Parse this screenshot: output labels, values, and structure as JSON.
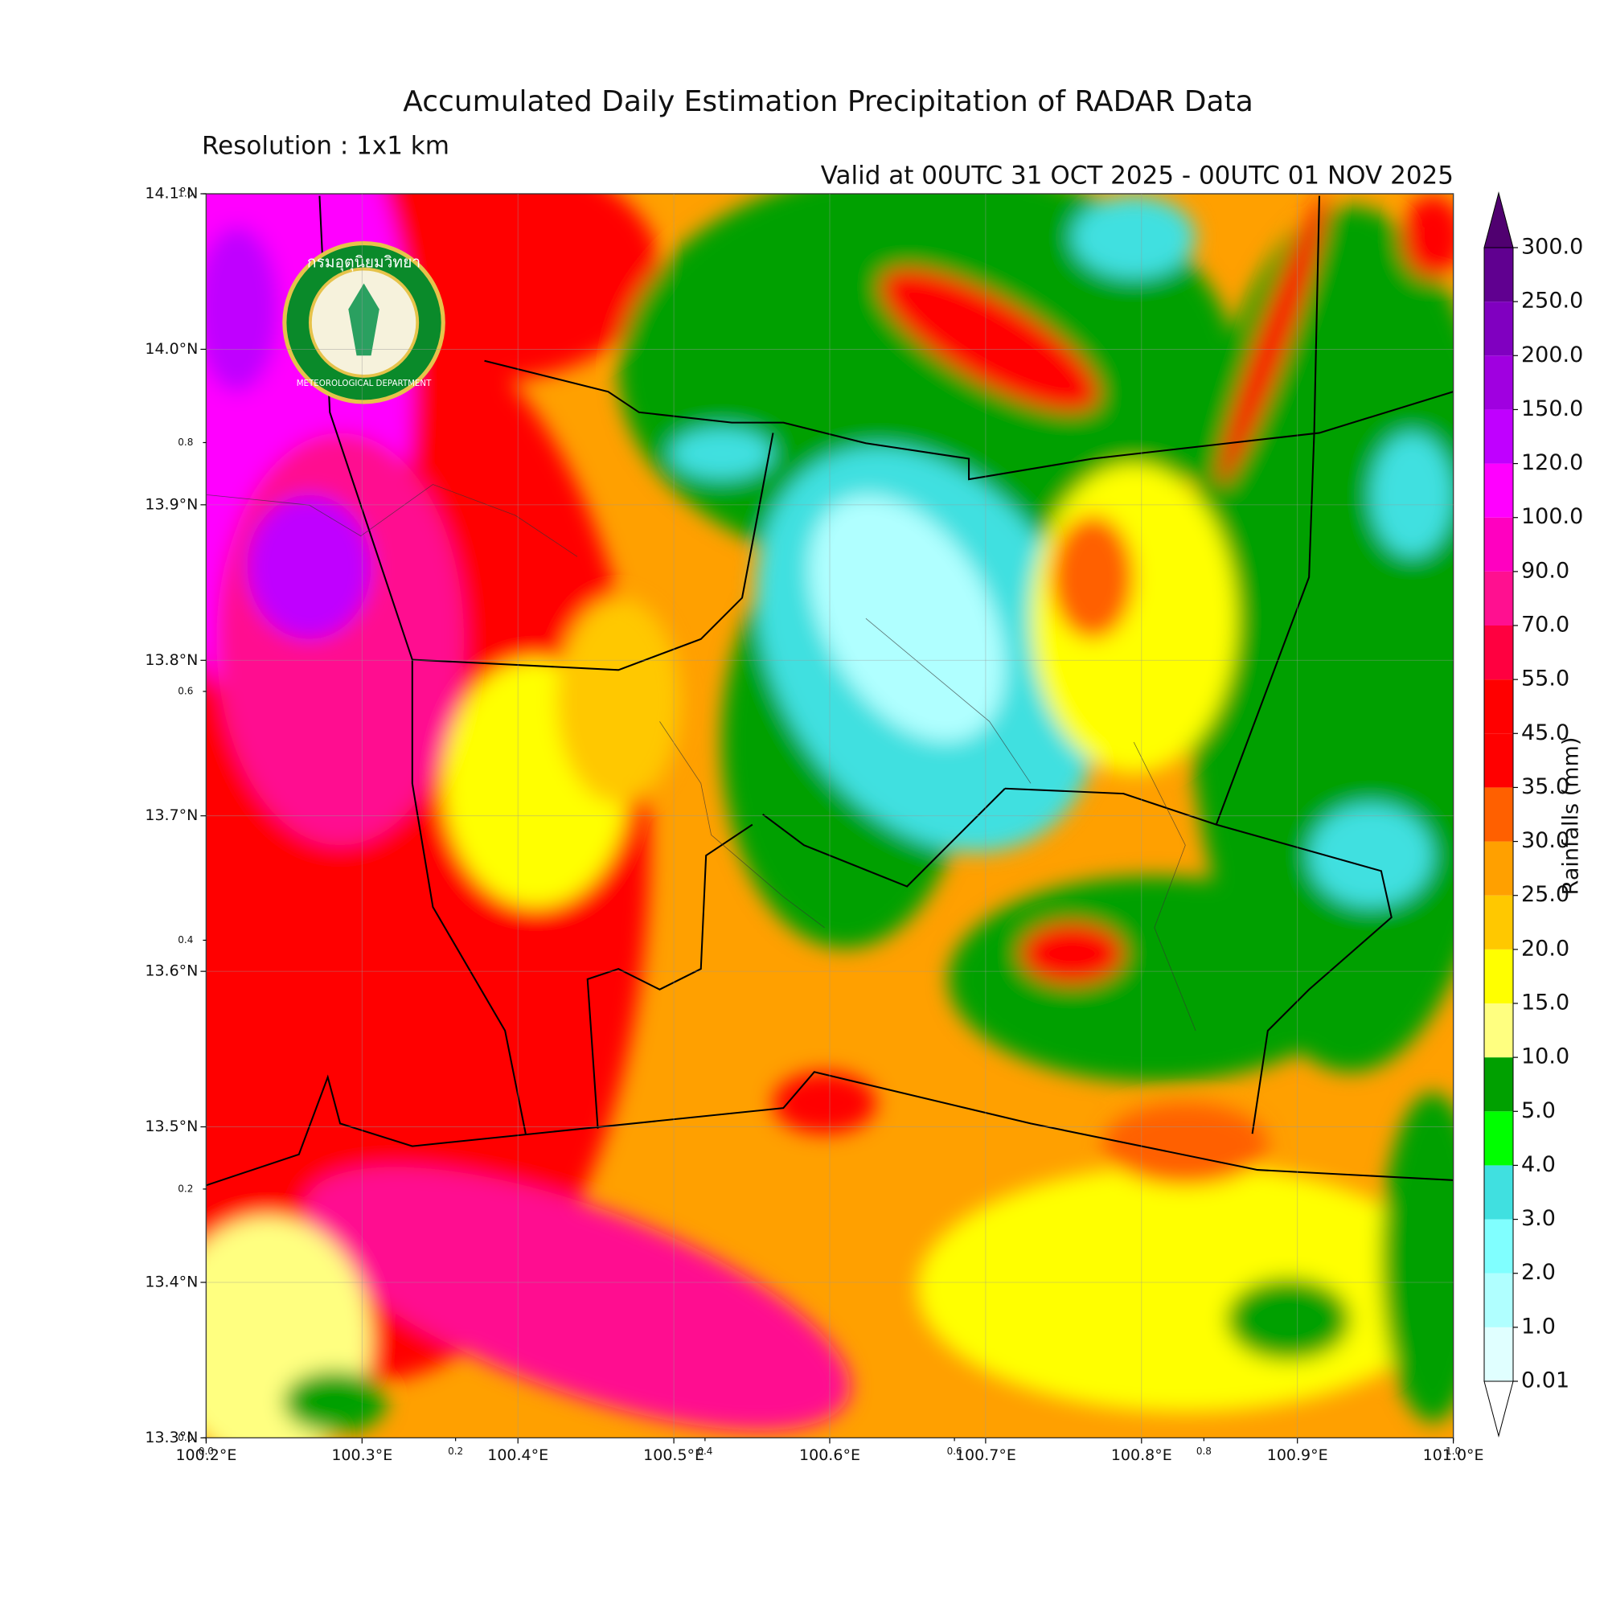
{
  "chart_data": {
    "type": "contour-map",
    "title": "Accumulated Daily Estimation Precipitation of RADAR Data",
    "subtitle": "Resolution : 1x1 km",
    "valid_time": "Valid at 00UTC 31 OCT 2025 - 00UTC 01 NOV 2025",
    "logo_text": "กรมอุตุนิยมวิทยา",
    "logo_subtext": "METEOROLOGICAL DEPARTMENT",
    "xlim": [
      100.2,
      101.0
    ],
    "ylim": [
      13.3,
      14.1
    ],
    "xticks": [
      {
        "value": 100.2,
        "label": "100.2°E"
      },
      {
        "value": 100.3,
        "label": "100.3°E"
      },
      {
        "value": 100.4,
        "label": "100.4°E"
      },
      {
        "value": 100.5,
        "label": "100.5°E"
      },
      {
        "value": 100.6,
        "label": "100.6°E"
      },
      {
        "value": 100.7,
        "label": "100.7°E"
      },
      {
        "value": 100.8,
        "label": "100.8°E"
      },
      {
        "value": 100.9,
        "label": "100.9°E"
      },
      {
        "value": 101.0,
        "label": "101.0°E"
      }
    ],
    "yticks": [
      {
        "value": 13.3,
        "label": "13.3°N"
      },
      {
        "value": 13.4,
        "label": "13.4°N"
      },
      {
        "value": 13.5,
        "label": "13.5°N"
      },
      {
        "value": 13.6,
        "label": "13.6°N"
      },
      {
        "value": 13.7,
        "label": "13.7°N"
      },
      {
        "value": 13.8,
        "label": "13.8°N"
      },
      {
        "value": 13.9,
        "label": "13.9°N"
      },
      {
        "value": 14.0,
        "label": "14.0°N"
      },
      {
        "value": 14.1,
        "label": "14.1°N"
      }
    ],
    "x2lim": [
      0,
      1
    ],
    "y2lim": [
      0,
      1
    ],
    "x2ticks": [
      {
        "value": 0,
        "label": "0.0"
      },
      0.2,
      0.4,
      0.6,
      0.8,
      {
        "value": 1,
        "label": "1.0"
      }
    ],
    "y2ticks": [
      {
        "value": 0,
        "label": "0.0"
      },
      0.2,
      0.4,
      0.6,
      0.8,
      {
        "value": 1,
        "label": "1.0"
      }
    ],
    "grid": true,
    "colorbar": {
      "label": "Rainfalls (mm)",
      "levels": [
        0.01,
        {
          "value": 1,
          "label": "1.0"
        },
        {
          "value": 2,
          "label": "2.0"
        },
        {
          "value": 3,
          "label": "3.0"
        },
        {
          "value": 4,
          "label": "4.0"
        },
        {
          "value": 5,
          "label": "5.0"
        },
        {
          "value": 10,
          "label": "10.0"
        },
        {
          "value": 15,
          "label": "15.0"
        },
        {
          "value": 20,
          "label": "20.0"
        },
        {
          "value": 25,
          "label": "25.0"
        },
        {
          "value": 30,
          "label": "30.0"
        },
        {
          "value": 35,
          "label": "35.0"
        },
        {
          "value": 45,
          "label": "45.0"
        },
        {
          "value": 55,
          "label": "55.0"
        },
        {
          "value": 70,
          "label": "70.0"
        },
        {
          "value": 90,
          "label": "90.0"
        },
        {
          "value": 100,
          "label": "100.0"
        },
        {
          "value": 120,
          "label": "120.0"
        },
        {
          "value": 150,
          "label": "150.0"
        },
        {
          "value": 200,
          "label": "200.0"
        },
        {
          "value": 250,
          "label": "250.0"
        },
        {
          "value": 300,
          "label": "300.0"
        }
      ],
      "colors": [
        "#e0ffff",
        "#b0ffff",
        "#80ffff",
        "#40e0e0",
        "#00ff00",
        "#00a000",
        "#ffff80",
        "#ffff00",
        "#ffc800",
        "#ffa000",
        "#ff6000",
        "#ff0000",
        "#ff0000",
        "#ff0040",
        "#ff1090",
        "#ff00c0",
        "#ff00ff",
        "#c000ff",
        "#a000e0",
        "#8000c0",
        "#600090"
      ],
      "over_color": "#500070",
      "under_color": "#ffffff"
    }
  }
}
